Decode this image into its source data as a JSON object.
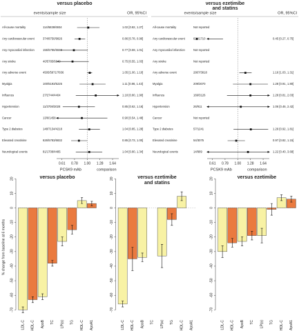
{
  "chart_data": [
    {
      "type": "forest",
      "title": [
        "versus placebo"
      ],
      "events_header": "events/sample size",
      "or_header": "OR, 95%CI",
      "categories": [
        "All-cause mortality",
        "Any cardiovascular event",
        "Any myocardial infarction",
        "Any stroke",
        "Any adverse event",
        "Myalgia",
        "Influenza",
        "Hypertension",
        "Cancer",
        "Type 2 diabetes",
        "Elevated creatinine",
        "Neurological events"
      ],
      "events": [
        "114/5838/6934",
        "374/8750/9826",
        "155/5786/6849",
        "40/5785/6849",
        "4505/5871/7836",
        "100/5193/5225",
        "27/2744/4404",
        "11/3708/3028",
        "13/6/1458",
        "148/7134/4218",
        "626/5783/6832",
        "81/1708/4485"
      ],
      "values": [
        1.02,
        0.86,
        0.77,
        0.75,
        1.05,
        1.11,
        1.18,
        0.85,
        0.9,
        1.04,
        0.85,
        1.04
      ],
      "lower": [
        0.82,
        0.78,
        0.59,
        0.55,
        1.0,
        0.86,
        0.8,
        0.62,
        0.54,
        0.85,
        0.73,
        0.8
      ],
      "upper": [
        1.27,
        0.96,
        1.01,
        1.03,
        1.1,
        1.43,
        1.9,
        1.16,
        1.48,
        1.28,
        1.0,
        1.34
      ],
      "value_labels": [
        "1.02 [0.82, 1.27]",
        "0.86 [0.78, 0.96]",
        "0.77 [0.59, 1.01]",
        "0.75 [0.55, 1.03]",
        "1.05 [1.00, 1.10]",
        "1.11 [0.86, 1.43]",
        "1.18 [0.80, 1.90]",
        "0.85 [0.62, 1.16]",
        "0.90 [0.54, 1.48]",
        "1.04 [0.85, 1.28]",
        "0.85 [0.73, 1.00]",
        "1.04 [0.80, 1.34]"
      ],
      "xlim": [
        0.55,
        1.85
      ],
      "xticks": [
        0.61,
        0.78,
        {
          "value": 1,
          "label": "1.00"
        },
        1.28,
        1.64
      ],
      "log_scale": true,
      "reference_line": 1,
      "xlabel_left": "PCSK9 mAb",
      "xlabel_right": "comparison"
    },
    {
      "type": "forest",
      "title": [
        "versus ezetimibe",
        "and statins"
      ],
      "events_header": "events/sample size",
      "or_header": "OR, 95%CI",
      "categories": [
        "All-cause mortality",
        "Any cardiovascular event",
        "Any myocardial infarction",
        "Any stroke",
        "Any adverse event",
        "Myalgia",
        "Influenza",
        "Hypertension",
        "Cancer",
        "Type 2 diabetes",
        "Elevated creatinine",
        "Neurological events"
      ],
      "events": [
        "Not reported",
        "621/1710",
        "Not reported",
        "Not reported",
        "2807/3818",
        "209/3070",
        "169/3126",
        "26/911",
        "Not reported",
        "57/1241",
        "54/3075",
        "14/989"
      ],
      "values": [
        null,
        0.45,
        null,
        null,
        1.16,
        1.28,
        1.28,
        1.06,
        null,
        1.29,
        0.97,
        1.22
      ],
      "lower": [
        null,
        0.27,
        null,
        null,
        1.03,
        0.91,
        0.81,
        0.46,
        null,
        0.92,
        0.82,
        0.4
      ],
      "upper": [
        null,
        0.75,
        null,
        null,
        1.31,
        1.8,
        2.03,
        2.42,
        null,
        1.81,
        1.15,
        3.68
      ],
      "value_labels": [
        null,
        "0.45 [0.27, 0.75]",
        null,
        null,
        "1.16 [1.03, 1.31]",
        "1.28 [0.91, 1.80]",
        "1.28 [0.81, 2.03]",
        "1.06 [0.46, 2.42]",
        null,
        "1.29 [0.92, 1.81]",
        "0.97 [0.82, 1.15]",
        "1.22 [0.40, 3.68]"
      ],
      "xlim": [
        0.55,
        1.85
      ],
      "xticks": [
        0.61,
        0.78,
        {
          "value": 1,
          "label": "1.00"
        },
        1.28,
        1.64
      ],
      "log_scale": true,
      "reference_line": 1,
      "xlabel_left": "PCSK9 mAb",
      "xlabel_right": "comparison"
    },
    {
      "type": "bar",
      "title": [
        "versus placebo"
      ],
      "ylabel": "% change from baseline at 6 months",
      "categories": [
        "LDL-C",
        "non-HDL-C",
        "ApoB",
        "TC",
        "LP(a)",
        "TG",
        "HDL-C",
        "ApoA1"
      ],
      "values": [
        -70,
        -63,
        -61,
        -38,
        -23,
        -15,
        5,
        3
      ],
      "errors": [
        2,
        2,
        2,
        2,
        3,
        3,
        2,
        1.5
      ],
      "colors": [
        "#f8f2a4",
        "#ea7a3f",
        "#f8f2a4",
        "#ea7a3f",
        "#f8f2a4",
        "#ea7a3f",
        "#f8f2a4",
        "#ea7a3f"
      ],
      "ylim": [
        -76,
        22
      ],
      "yticks": [
        20,
        10,
        0,
        -10,
        -20,
        -30,
        -40,
        -50,
        -60,
        -70
      ]
    },
    {
      "type": "bar",
      "title": [
        "versus ezetimibe",
        "and statins"
      ],
      "categories": [
        "LDL-C",
        "non-HDL-C",
        "ApoB",
        "TC",
        "LP(a)",
        "TG",
        "HDL-C",
        "ApoA1"
      ],
      "values": [
        -66,
        -35,
        -34,
        null,
        -33,
        -8,
        8,
        null
      ],
      "errors": [
        2,
        8,
        3,
        null,
        8,
        4,
        3,
        null
      ],
      "colors": [
        "#f8f2a4",
        "#ea7a3f",
        "#f8f2a4",
        "#ea7a3f",
        "#f8f2a4",
        "#ea7a3f",
        "#f8f2a4",
        "#ea7a3f"
      ],
      "ylim": [
        -76,
        22
      ],
      "yticks": [
        20,
        10,
        0,
        -10,
        -20,
        -30,
        -40,
        -50,
        -60,
        -70
      ]
    },
    {
      "type": "bar",
      "title": [
        "versus ezetimibe"
      ],
      "categories": [
        "LDL-C",
        "non-HDL-C",
        "ApoB",
        "TC",
        "LP(a)",
        "TG",
        "HDL-C",
        "ApoA1"
      ],
      "values": [
        -30,
        -24,
        -23,
        -19,
        -19,
        -1,
        7,
        6
      ],
      "errors": [
        4,
        3,
        3,
        3,
        5,
        4,
        2,
        2
      ],
      "colors": [
        "#f8f2a4",
        "#ea7a3f",
        "#f8f2a4",
        "#ea7a3f",
        "#f8f2a4",
        "#ea7a3f",
        "#f8f2a4",
        "#ea7a3f"
      ],
      "ylim": [
        -76,
        22
      ],
      "yticks": [
        20,
        10,
        0,
        -10,
        -20,
        -30,
        -40,
        -50,
        -60,
        -70
      ]
    }
  ]
}
